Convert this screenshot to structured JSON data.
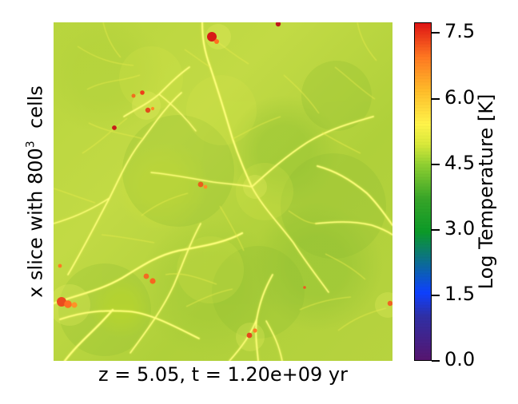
{
  "figure": {
    "left_label_prefix": "x slice with 800",
    "left_label_superscript": "3",
    "left_label_suffix": "cells",
    "bottom_label": "z = 5.05, t = 1.20e+09 yr",
    "colorbar_label": "Log Temperature [K]",
    "colorbar_ticks": [
      "0.0",
      "1.5",
      "3.0",
      "4.5",
      "6.0",
      "7.5"
    ]
  }
}
